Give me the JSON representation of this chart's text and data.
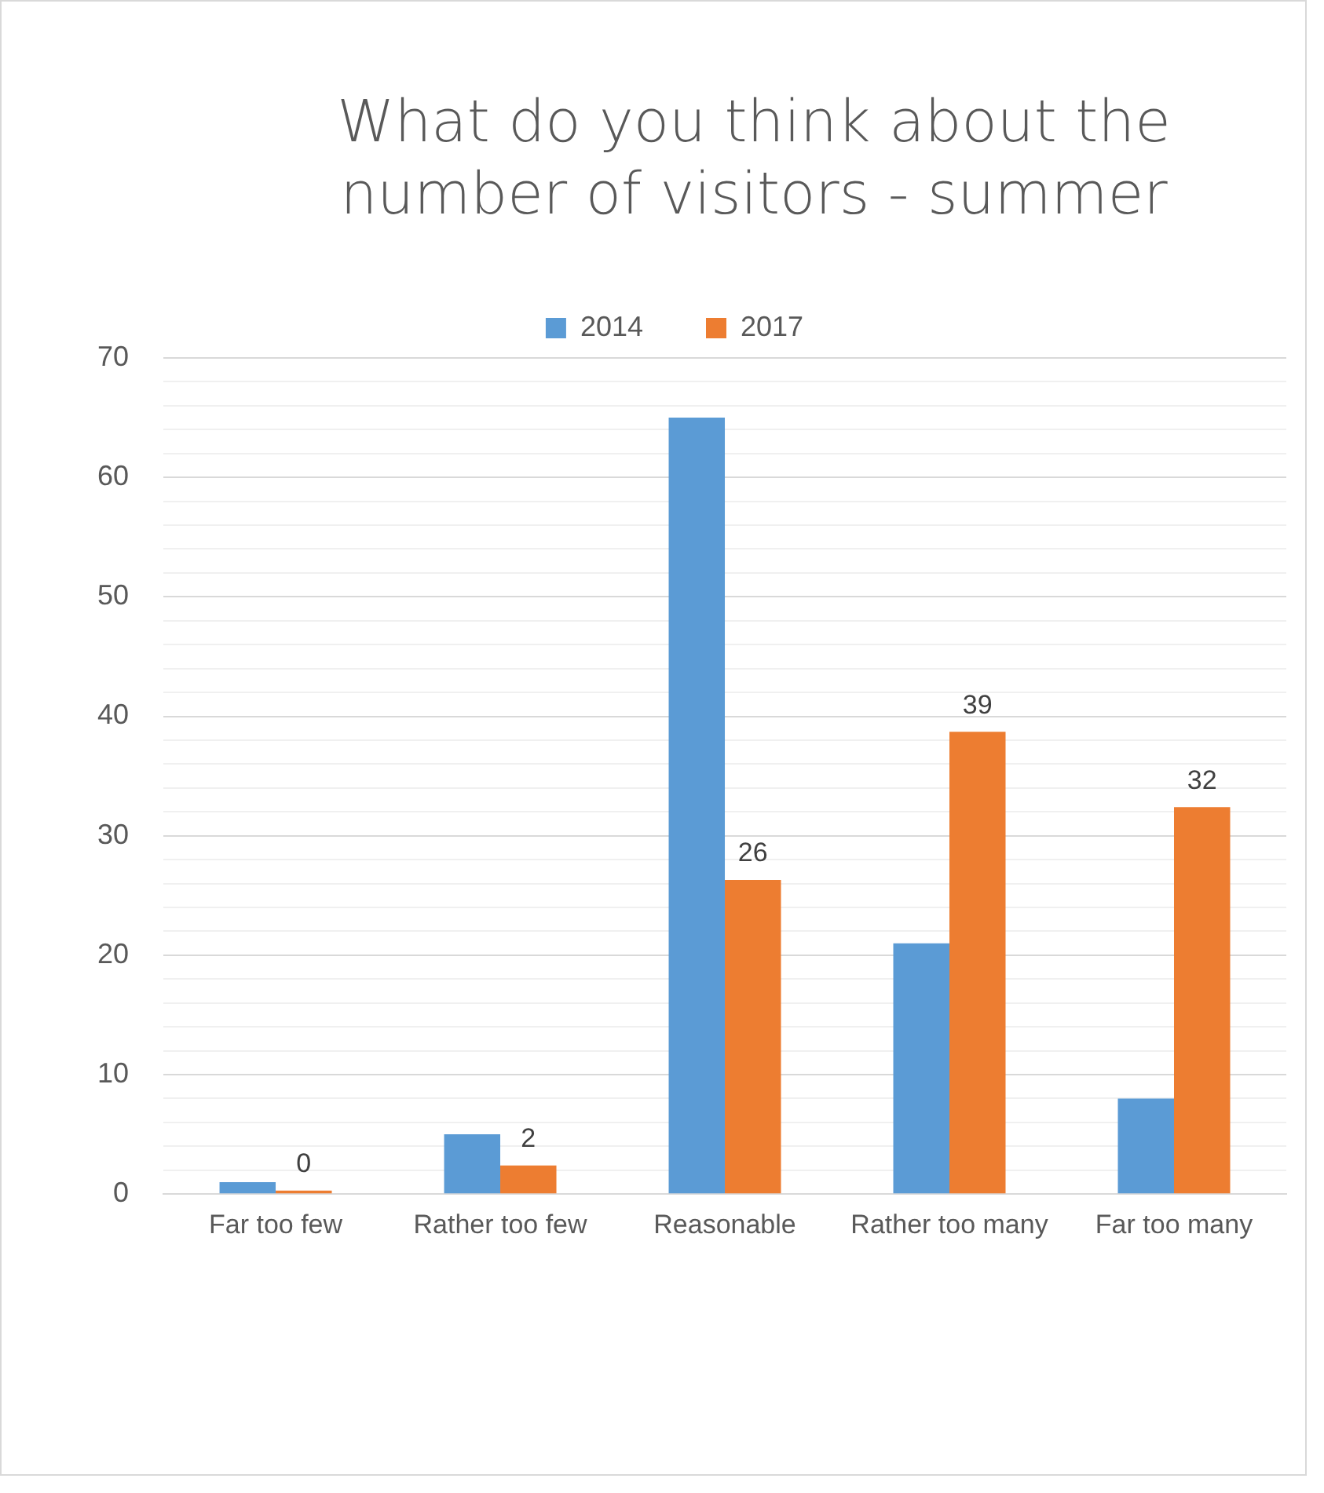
{
  "chart_data": {
    "type": "bar",
    "title": "What do you think about the number of visitors - summer",
    "categories": [
      "Far too few",
      "Rather too few",
      "Reasonable",
      "Rather too many",
      "Far too many"
    ],
    "series": [
      {
        "name": "2014",
        "color": "#5b9bd5",
        "values": [
          1,
          5,
          65,
          21,
          8
        ]
      },
      {
        "name": "2017",
        "color": "#ed7d31",
        "values": [
          0.3,
          2.4,
          26.3,
          38.7,
          32.4
        ],
        "value_labels": [
          "0",
          "2",
          "26",
          "39",
          "32"
        ]
      }
    ],
    "ylim": [
      0,
      70
    ],
    "yticks": [
      0,
      {
        "value": 2,
        "label": null
      },
      {
        "value": 4,
        "label": null
      },
      {
        "value": 6,
        "label": null
      },
      {
        "value": 8,
        "label": null
      },
      10,
      {
        "value": 12,
        "label": null
      },
      {
        "value": 14,
        "label": null
      },
      {
        "value": 16,
        "label": null
      },
      {
        "value": 18,
        "label": null
      },
      20,
      {
        "value": 22,
        "label": null
      },
      {
        "value": 24,
        "label": null
      },
      {
        "value": 26,
        "label": null
      },
      {
        "value": 28,
        "label": null
      },
      30,
      {
        "value": 32,
        "label": null
      },
      {
        "value": 34,
        "label": null
      },
      {
        "value": 36,
        "label": null
      },
      {
        "value": 38,
        "label": null
      },
      40,
      {
        "value": 42,
        "label": null
      },
      {
        "value": 44,
        "label": null
      },
      {
        "value": 46,
        "label": null
      },
      {
        "value": 48,
        "label": null
      },
      50,
      {
        "value": 52,
        "label": null
      },
      {
        "value": 54,
        "label": null
      },
      {
        "value": 56,
        "label": null
      },
      {
        "value": 58,
        "label": null
      },
      60,
      {
        "value": 62,
        "label": null
      },
      {
        "value": 64,
        "label": null
      },
      {
        "value": 66,
        "label": null
      },
      {
        "value": 68,
        "label": null
      },
      70
    ],
    "grid": "y",
    "legend": "top"
  }
}
